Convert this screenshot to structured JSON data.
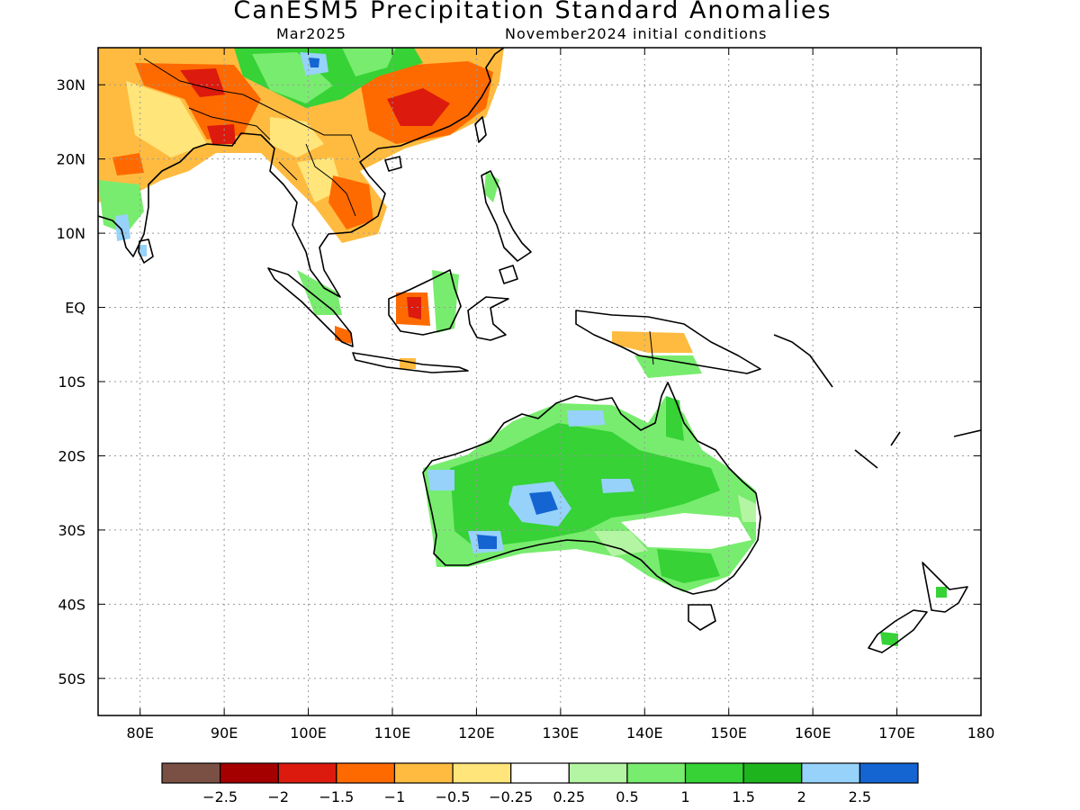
{
  "title": "CanESM5 Precipitation Standard Anomalies",
  "subtitle_left": "Mar2025",
  "subtitle_right": "November2024 initial conditions",
  "lat_ticks": [
    "30N",
    "20N",
    "10N",
    "EQ",
    "10S",
    "20S",
    "30S",
    "40S",
    "50S"
  ],
  "lon_ticks": [
    "80E",
    "90E",
    "100E",
    "110E",
    "120E",
    "130E",
    "140E",
    "150E",
    "160E",
    "170E",
    "180"
  ],
  "colorbar": {
    "colors": [
      "#7a5044",
      "#a50000",
      "#dc1a0e",
      "#ff6a00",
      "#ffbb40",
      "#ffe57a",
      "#ffffff",
      "#b4f5a4",
      "#78ec6e",
      "#36d236",
      "#1eb41e",
      "#96d2fa",
      "#1464d2"
    ],
    "labels": [
      "−2.5",
      "−2",
      "−1.5",
      "−1",
      "−0.5",
      "−0.25",
      "0.25",
      "0.5",
      "1",
      "1.5",
      "2",
      "2.5"
    ]
  }
}
